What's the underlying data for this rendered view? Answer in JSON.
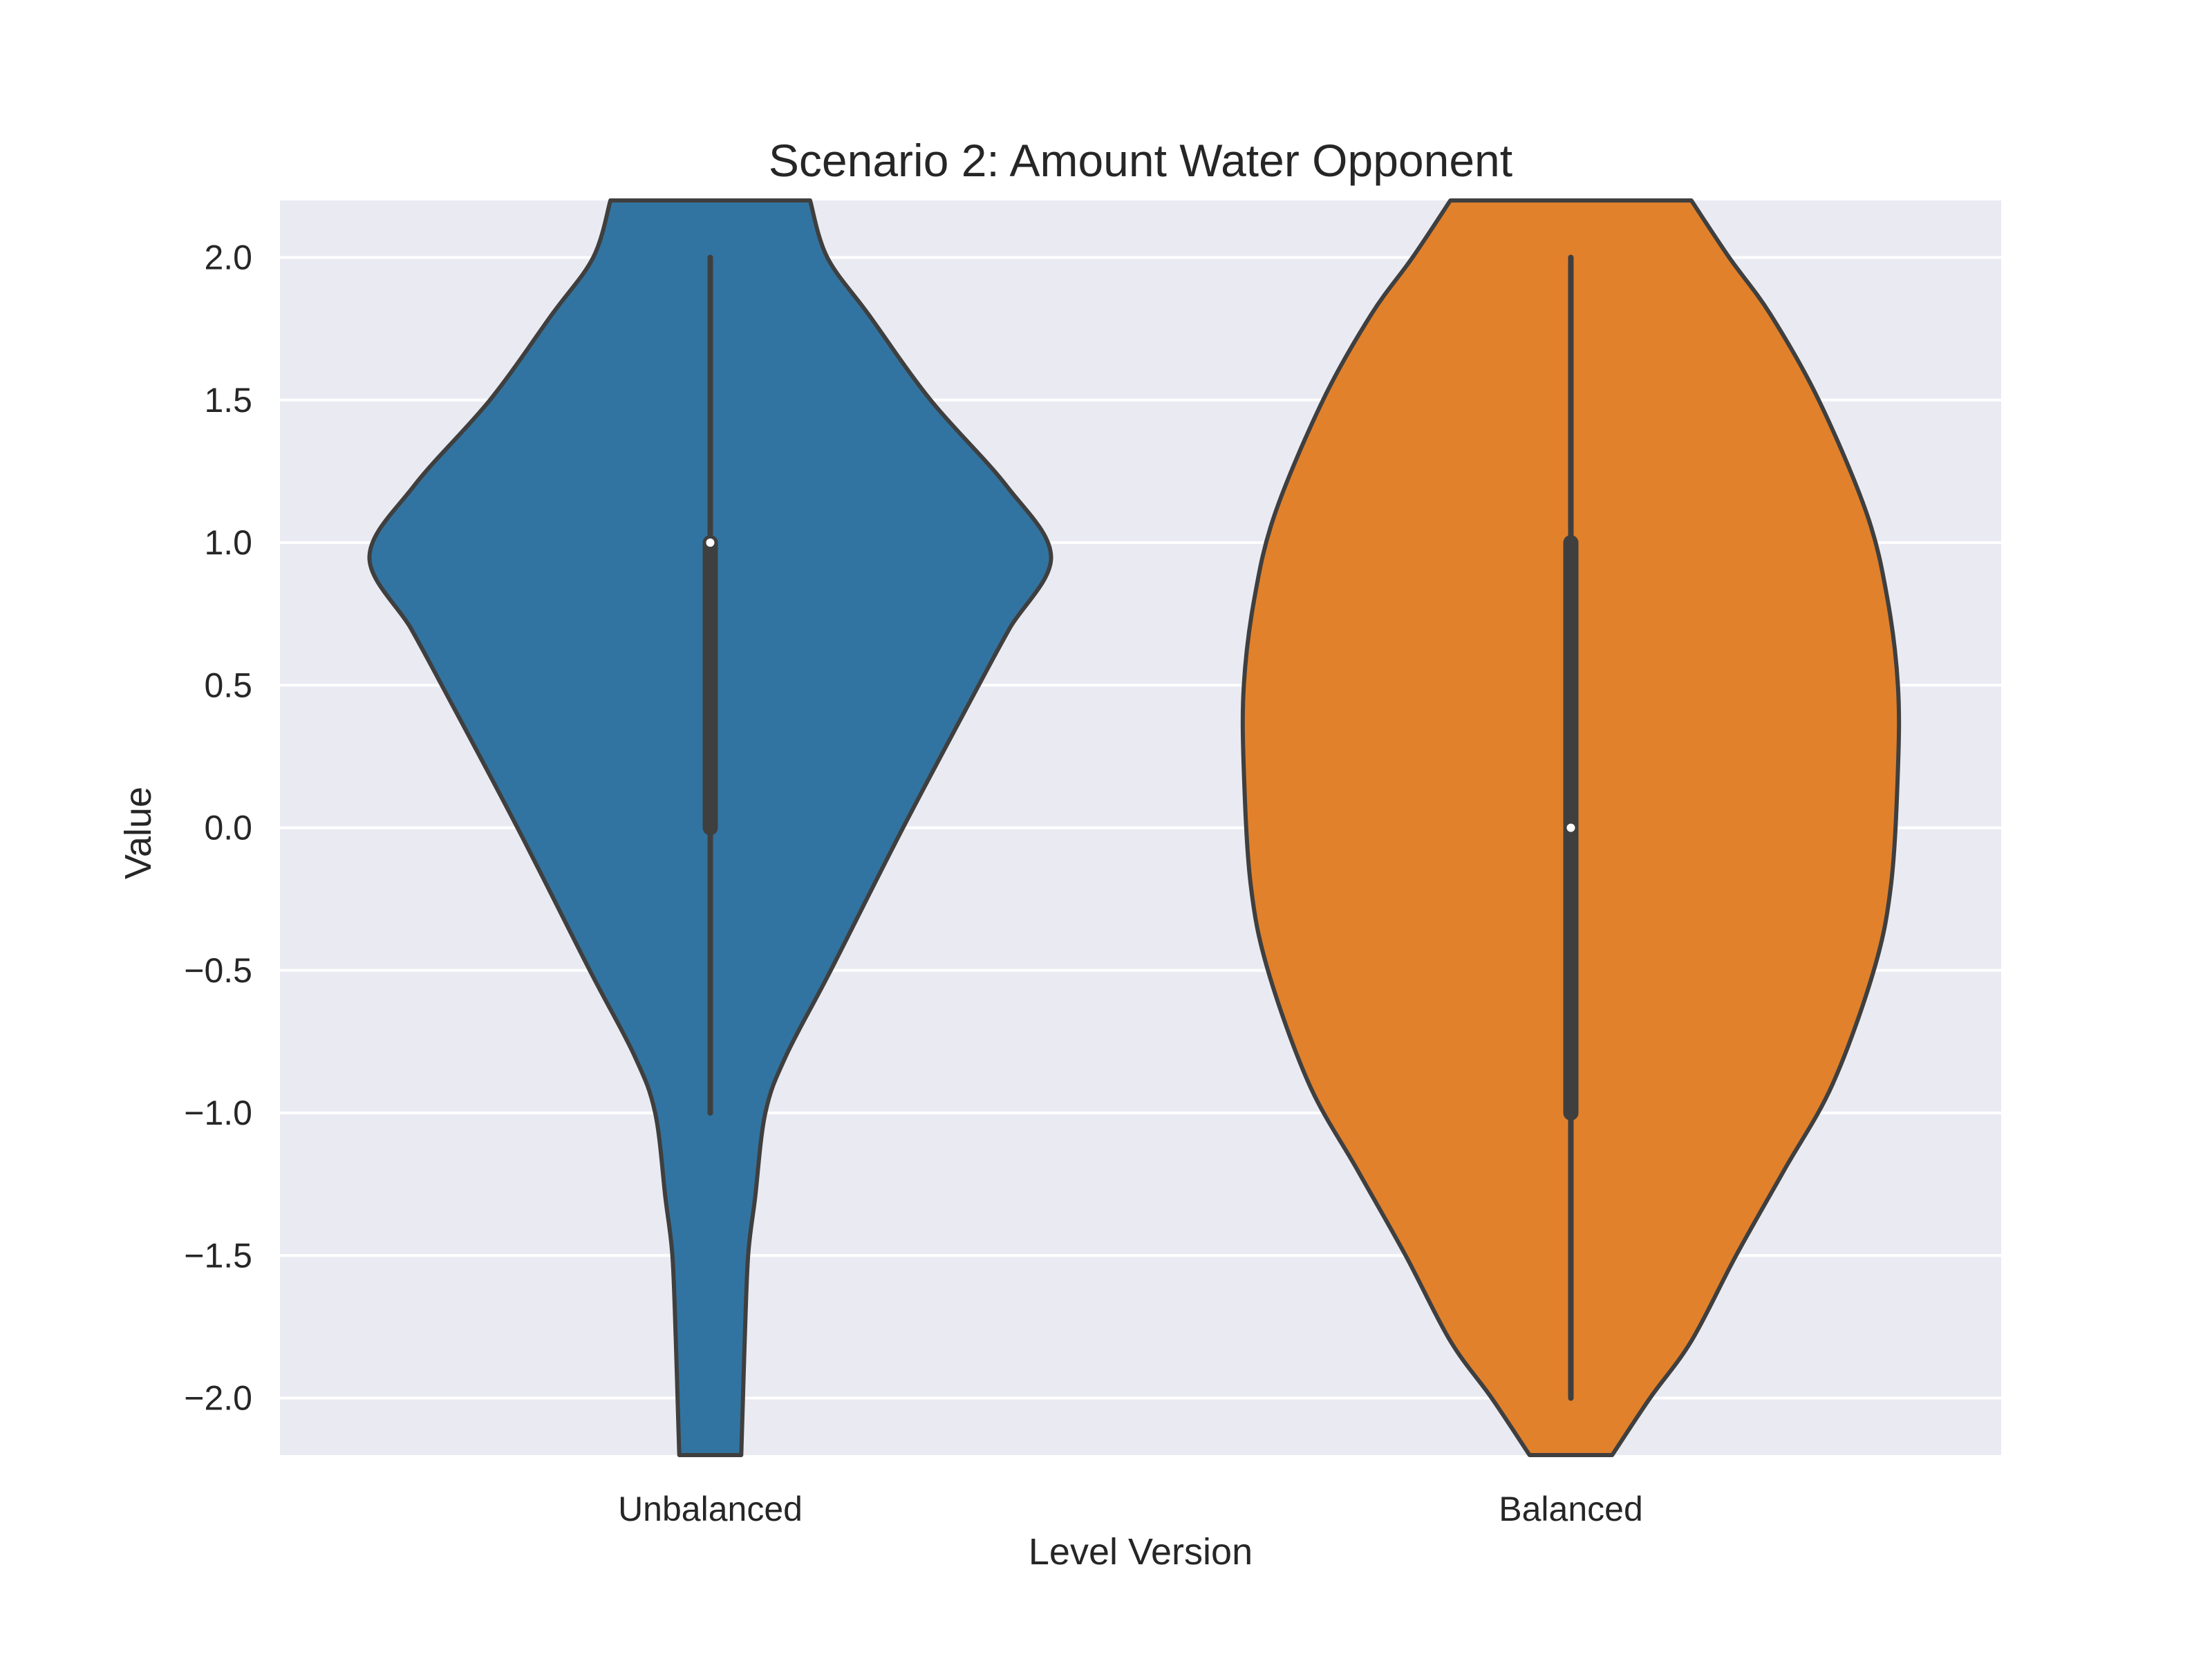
{
  "chart_data": {
    "type": "violin",
    "title": "Scenario 2: Amount Water Opponent",
    "xlabel": "Level Version",
    "ylabel": "Value",
    "ylim": [
      -2.2,
      2.2
    ],
    "yticks": [
      2.0,
      1.5,
      1.0,
      0.5,
      0.0,
      -0.5,
      -1.0,
      -1.5,
      -2.0
    ],
    "ytick_labels": [
      "2.0",
      "1.5",
      "1.0",
      "0.5",
      "0.0",
      "−0.5",
      "−1.0",
      "−1.5",
      "−2.0"
    ],
    "categories": [
      "Unbalanced",
      "Balanced"
    ],
    "grid": true,
    "background": "#eaeaf2",
    "series": [
      {
        "category": "Unbalanced",
        "color": "#3274a1",
        "min": -1.0,
        "q1": 0.0,
        "median": 1.0,
        "q3": 1.0,
        "max": 2.0,
        "density_profile": [
          [
            -2.2,
            0.09
          ],
          [
            -2.0,
            0.095
          ],
          [
            -1.8,
            0.1
          ],
          [
            -1.5,
            0.11
          ],
          [
            -1.3,
            0.13
          ],
          [
            -1.0,
            0.16
          ],
          [
            -0.8,
            0.22
          ],
          [
            -0.5,
            0.35
          ],
          [
            0.0,
            0.56
          ],
          [
            0.5,
            0.78
          ],
          [
            0.7,
            0.87
          ],
          [
            0.95,
            0.99
          ],
          [
            1.2,
            0.86
          ],
          [
            1.5,
            0.64
          ],
          [
            1.8,
            0.46
          ],
          [
            2.0,
            0.34
          ],
          [
            2.2,
            0.29
          ]
        ]
      },
      {
        "category": "Balanced",
        "color": "#e1812c",
        "min": -2.0,
        "q1": -1.0,
        "median": 0.0,
        "q3": 1.0,
        "max": 2.0,
        "density_profile": [
          [
            -2.2,
            0.12
          ],
          [
            -2.0,
            0.23
          ],
          [
            -1.8,
            0.35
          ],
          [
            -1.5,
            0.48
          ],
          [
            -1.2,
            0.62
          ],
          [
            -0.9,
            0.76
          ],
          [
            -0.5,
            0.88
          ],
          [
            -0.2,
            0.93
          ],
          [
            0.2,
            0.95
          ],
          [
            0.5,
            0.95
          ],
          [
            0.8,
            0.92
          ],
          [
            1.1,
            0.86
          ],
          [
            1.5,
            0.72
          ],
          [
            1.8,
            0.58
          ],
          [
            2.0,
            0.46
          ],
          [
            2.2,
            0.35
          ]
        ]
      }
    ]
  }
}
